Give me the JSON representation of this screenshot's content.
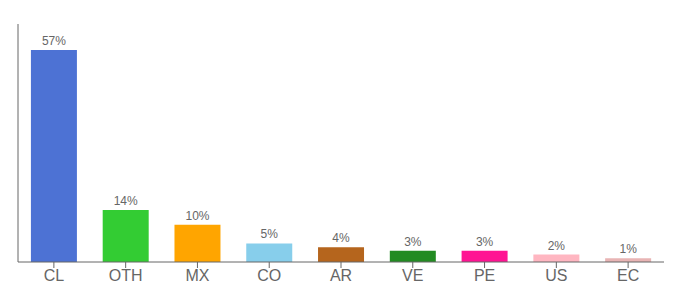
{
  "chart_data": {
    "type": "bar",
    "categories": [
      "CL",
      "OTH",
      "MX",
      "CO",
      "AR",
      "VE",
      "PE",
      "US",
      "EC"
    ],
    "values": [
      57,
      14,
      10,
      5,
      4,
      3,
      3,
      2,
      1
    ],
    "value_labels": [
      "57%",
      "14%",
      "10%",
      "5%",
      "4%",
      "3%",
      "3%",
      "2%",
      "1%"
    ],
    "colors": [
      "#4d72d4",
      "#33cc33",
      "#ffa500",
      "#87ceeb",
      "#b5651d",
      "#228b22",
      "#ff1493",
      "#ffb6c1",
      "#e8b4b4"
    ],
    "ylim": [
      0,
      64
    ],
    "grid": false,
    "data_labels": true,
    "tick_labels": "x"
  }
}
